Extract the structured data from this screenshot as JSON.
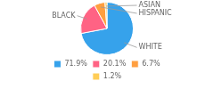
{
  "chart_data": {
    "type": "pie",
    "categories": [
      "WHITE",
      "BLACK",
      "HISPANIC",
      "ASIAN"
    ],
    "values": [
      71.9,
      20.1,
      6.7,
      1.2
    ],
    "value_labels": [
      "71.9%",
      "20.1%",
      "6.7%",
      "1.2%"
    ],
    "legend": "bottom"
  }
}
